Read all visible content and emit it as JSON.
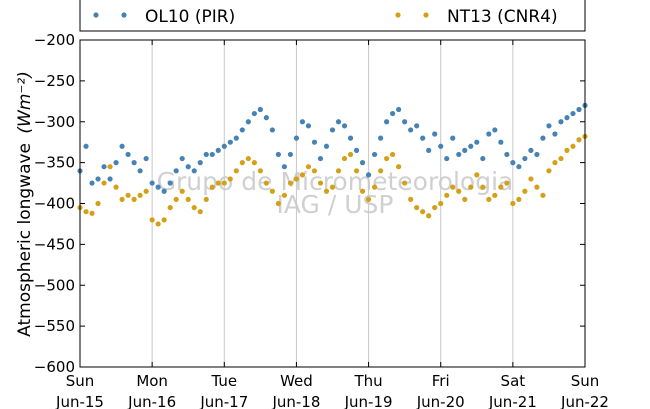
{
  "chart_data": {
    "type": "scatter",
    "ylabel_text": "Atmospheric longwave",
    "ylabel_unit": "(Wm⁻²)",
    "ylim": [
      -600,
      -200
    ],
    "yticks": [
      -600,
      -550,
      -500,
      -450,
      -400,
      -350,
      -300,
      -250,
      -200
    ],
    "xlim": [
      "2014-06-15",
      "2014-06-22"
    ],
    "xtick_labels": [
      {
        "day": "Sun",
        "date": "Jun-15"
      },
      {
        "day": "Mon",
        "date": "Jun-16"
      },
      {
        "day": "Tue",
        "date": "Jun-17"
      },
      {
        "day": "Wed",
        "date": "Jun-18"
      },
      {
        "day": "Thu",
        "date": "Jun-19"
      },
      {
        "day": "Fri",
        "date": "Jun-20"
      },
      {
        "day": "Sat",
        "date": "Jun-21"
      },
      {
        "day": "Sun",
        "date": "Jun-22"
      }
    ],
    "grid": "vertical",
    "legend_placement": "top (above plot)",
    "watermark": [
      "Grupo de Micrometeorologia",
      "IAG / USP"
    ],
    "series": [
      {
        "name": "OL10 (PIR)",
        "color": "#4682b4",
        "marker": "dot",
        "x": [
          "2014-06-15 00:00",
          "2014-06-15 02:00",
          "2014-06-15 04:00",
          "2014-06-15 06:00",
          "2014-06-15 08:00",
          "2014-06-15 10:00",
          "2014-06-15 12:00",
          "2014-06-15 14:00",
          "2014-06-15 16:00",
          "2014-06-15 18:00",
          "2014-06-15 20:00",
          "2014-06-15 22:00",
          "2014-06-16 00:00",
          "2014-06-16 02:00",
          "2014-06-16 04:00",
          "2014-06-16 06:00",
          "2014-06-16 08:00",
          "2014-06-16 10:00",
          "2014-06-16 12:00",
          "2014-06-16 14:00",
          "2014-06-16 16:00",
          "2014-06-16 18:00",
          "2014-06-16 20:00",
          "2014-06-16 22:00",
          "2014-06-17 00:00",
          "2014-06-17 02:00",
          "2014-06-17 04:00",
          "2014-06-17 06:00",
          "2014-06-17 08:00",
          "2014-06-17 10:00",
          "2014-06-17 12:00",
          "2014-06-17 14:00",
          "2014-06-17 16:00",
          "2014-06-17 18:00",
          "2014-06-17 20:00",
          "2014-06-17 22:00",
          "2014-06-18 00:00",
          "2014-06-18 02:00",
          "2014-06-18 04:00",
          "2014-06-18 06:00",
          "2014-06-18 08:00",
          "2014-06-18 10:00",
          "2014-06-18 12:00",
          "2014-06-18 14:00",
          "2014-06-18 16:00",
          "2014-06-18 18:00",
          "2014-06-18 20:00",
          "2014-06-18 22:00",
          "2014-06-19 00:00",
          "2014-06-19 02:00",
          "2014-06-19 04:00",
          "2014-06-19 06:00",
          "2014-06-19 08:00",
          "2014-06-19 10:00",
          "2014-06-19 12:00",
          "2014-06-19 14:00",
          "2014-06-19 16:00",
          "2014-06-19 18:00",
          "2014-06-19 20:00",
          "2014-06-19 22:00",
          "2014-06-20 00:00",
          "2014-06-20 02:00",
          "2014-06-20 04:00",
          "2014-06-20 06:00",
          "2014-06-20 08:00",
          "2014-06-20 10:00",
          "2014-06-20 12:00",
          "2014-06-20 14:00",
          "2014-06-20 16:00",
          "2014-06-20 18:00",
          "2014-06-20 20:00",
          "2014-06-20 22:00",
          "2014-06-21 00:00",
          "2014-06-21 02:00",
          "2014-06-21 04:00",
          "2014-06-21 06:00",
          "2014-06-21 08:00",
          "2014-06-21 10:00",
          "2014-06-21 12:00",
          "2014-06-21 14:00",
          "2014-06-21 16:00",
          "2014-06-21 18:00",
          "2014-06-21 20:00",
          "2014-06-21 22:00",
          "2014-06-22 00:00"
        ],
        "y": [
          -360,
          -330,
          -375,
          -370,
          -355,
          -370,
          -350,
          -330,
          -340,
          -350,
          -360,
          -345,
          -375,
          -380,
          -385,
          -375,
          -360,
          -345,
          -355,
          -360,
          -350,
          -340,
          -340,
          -335,
          -330,
          -325,
          -320,
          -310,
          -300,
          -290,
          -285,
          -295,
          -310,
          -340,
          -355,
          -340,
          -320,
          -300,
          -305,
          -325,
          -345,
          -330,
          -310,
          -300,
          -305,
          -320,
          -335,
          -350,
          -365,
          -340,
          -320,
          -300,
          -290,
          -285,
          -300,
          -310,
          -305,
          -320,
          -335,
          -315,
          -330,
          -345,
          -320,
          -340,
          -335,
          -330,
          -325,
          -345,
          -315,
          -310,
          -325,
          -340,
          -350,
          -355,
          -345,
          -335,
          -340,
          -320,
          -305,
          -315,
          -300,
          -295,
          -290,
          -285,
          -280
        ]
      },
      {
        "name": "NT13 (CNR4)",
        "color": "#d4a017",
        "marker": "dot",
        "x": [
          "2014-06-15 00:00",
          "2014-06-15 02:00",
          "2014-06-15 04:00",
          "2014-06-15 06:00",
          "2014-06-15 08:00",
          "2014-06-15 10:00",
          "2014-06-15 12:00",
          "2014-06-15 14:00",
          "2014-06-15 16:00",
          "2014-06-15 18:00",
          "2014-06-15 20:00",
          "2014-06-15 22:00",
          "2014-06-16 00:00",
          "2014-06-16 02:00",
          "2014-06-16 04:00",
          "2014-06-16 06:00",
          "2014-06-16 08:00",
          "2014-06-16 10:00",
          "2014-06-16 12:00",
          "2014-06-16 14:00",
          "2014-06-16 16:00",
          "2014-06-16 18:00",
          "2014-06-16 20:00",
          "2014-06-16 22:00",
          "2014-06-17 00:00",
          "2014-06-17 02:00",
          "2014-06-17 04:00",
          "2014-06-17 06:00",
          "2014-06-17 08:00",
          "2014-06-17 10:00",
          "2014-06-17 12:00",
          "2014-06-17 14:00",
          "2014-06-17 16:00",
          "2014-06-17 18:00",
          "2014-06-17 20:00",
          "2014-06-17 22:00",
          "2014-06-18 00:00",
          "2014-06-18 02:00",
          "2014-06-18 04:00",
          "2014-06-18 06:00",
          "2014-06-18 08:00",
          "2014-06-18 10:00",
          "2014-06-18 12:00",
          "2014-06-18 14:00",
          "2014-06-18 16:00",
          "2014-06-18 18:00",
          "2014-06-18 20:00",
          "2014-06-18 22:00",
          "2014-06-19 00:00",
          "2014-06-19 02:00",
          "2014-06-19 04:00",
          "2014-06-19 06:00",
          "2014-06-19 08:00",
          "2014-06-19 10:00",
          "2014-06-19 12:00",
          "2014-06-19 14:00",
          "2014-06-19 16:00",
          "2014-06-19 18:00",
          "2014-06-19 20:00",
          "2014-06-19 22:00",
          "2014-06-20 00:00",
          "2014-06-20 02:00",
          "2014-06-20 04:00",
          "2014-06-20 06:00",
          "2014-06-20 08:00",
          "2014-06-20 10:00",
          "2014-06-20 12:00",
          "2014-06-20 14:00",
          "2014-06-20 16:00",
          "2014-06-20 18:00",
          "2014-06-20 20:00",
          "2014-06-20 22:00",
          "2014-06-21 00:00",
          "2014-06-21 02:00",
          "2014-06-21 04:00",
          "2014-06-21 06:00",
          "2014-06-21 08:00",
          "2014-06-21 10:00",
          "2014-06-21 12:00",
          "2014-06-21 14:00",
          "2014-06-21 16:00",
          "2014-06-21 18:00",
          "2014-06-21 20:00",
          "2014-06-21 22:00",
          "2014-06-22 00:00"
        ],
        "y": [
          -405,
          -410,
          -412,
          -400,
          -375,
          -355,
          -380,
          -395,
          -390,
          -395,
          -390,
          -385,
          -420,
          -425,
          -420,
          -405,
          -395,
          -385,
          -395,
          -405,
          -410,
          -395,
          -380,
          -375,
          -375,
          -370,
          -360,
          -350,
          -345,
          -350,
          -360,
          -375,
          -385,
          -400,
          -390,
          -375,
          -370,
          -365,
          -355,
          -360,
          -375,
          -385,
          -380,
          -360,
          -345,
          -340,
          -360,
          -385,
          -395,
          -380,
          -360,
          -345,
          -340,
          -355,
          -375,
          -395,
          -405,
          -410,
          -415,
          -405,
          -400,
          -390,
          -380,
          -385,
          -395,
          -380,
          -365,
          -380,
          -395,
          -390,
          -380,
          -375,
          -400,
          -395,
          -385,
          -370,
          -380,
          -390,
          -360,
          -350,
          -345,
          -335,
          -330,
          -322,
          -318
        ]
      }
    ]
  }
}
